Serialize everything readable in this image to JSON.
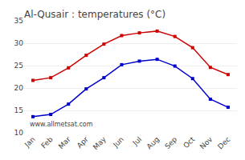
{
  "chart_data": {
    "type": "line",
    "title": "Al-Qusair : temperatures (°C)",
    "categories": [
      "Jan",
      "Feb",
      "Mar",
      "Apr",
      "May",
      "Jun",
      "Jul",
      "Aug",
      "Sep",
      "Oct",
      "Nov",
      "Dec"
    ],
    "series": [
      {
        "color": "#cc0000",
        "marker": "square",
        "values": [
          21.7,
          22.3,
          24.5,
          27.3,
          29.8,
          31.7,
          32.3,
          32.7,
          31.5,
          29.0,
          24.6,
          23.0
        ]
      },
      {
        "color": "#0000cc",
        "marker": "square",
        "values": [
          13.6,
          14.1,
          16.4,
          19.8,
          22.3,
          25.2,
          26.0,
          26.4,
          24.9,
          22.1,
          17.5,
          15.7
        ]
      }
    ],
    "ylim": [
      10,
      35
    ],
    "yticks": [
      10,
      15,
      20,
      25,
      30,
      35
    ],
    "grid": true,
    "annotations": [
      "www.allmetsat.com"
    ]
  }
}
